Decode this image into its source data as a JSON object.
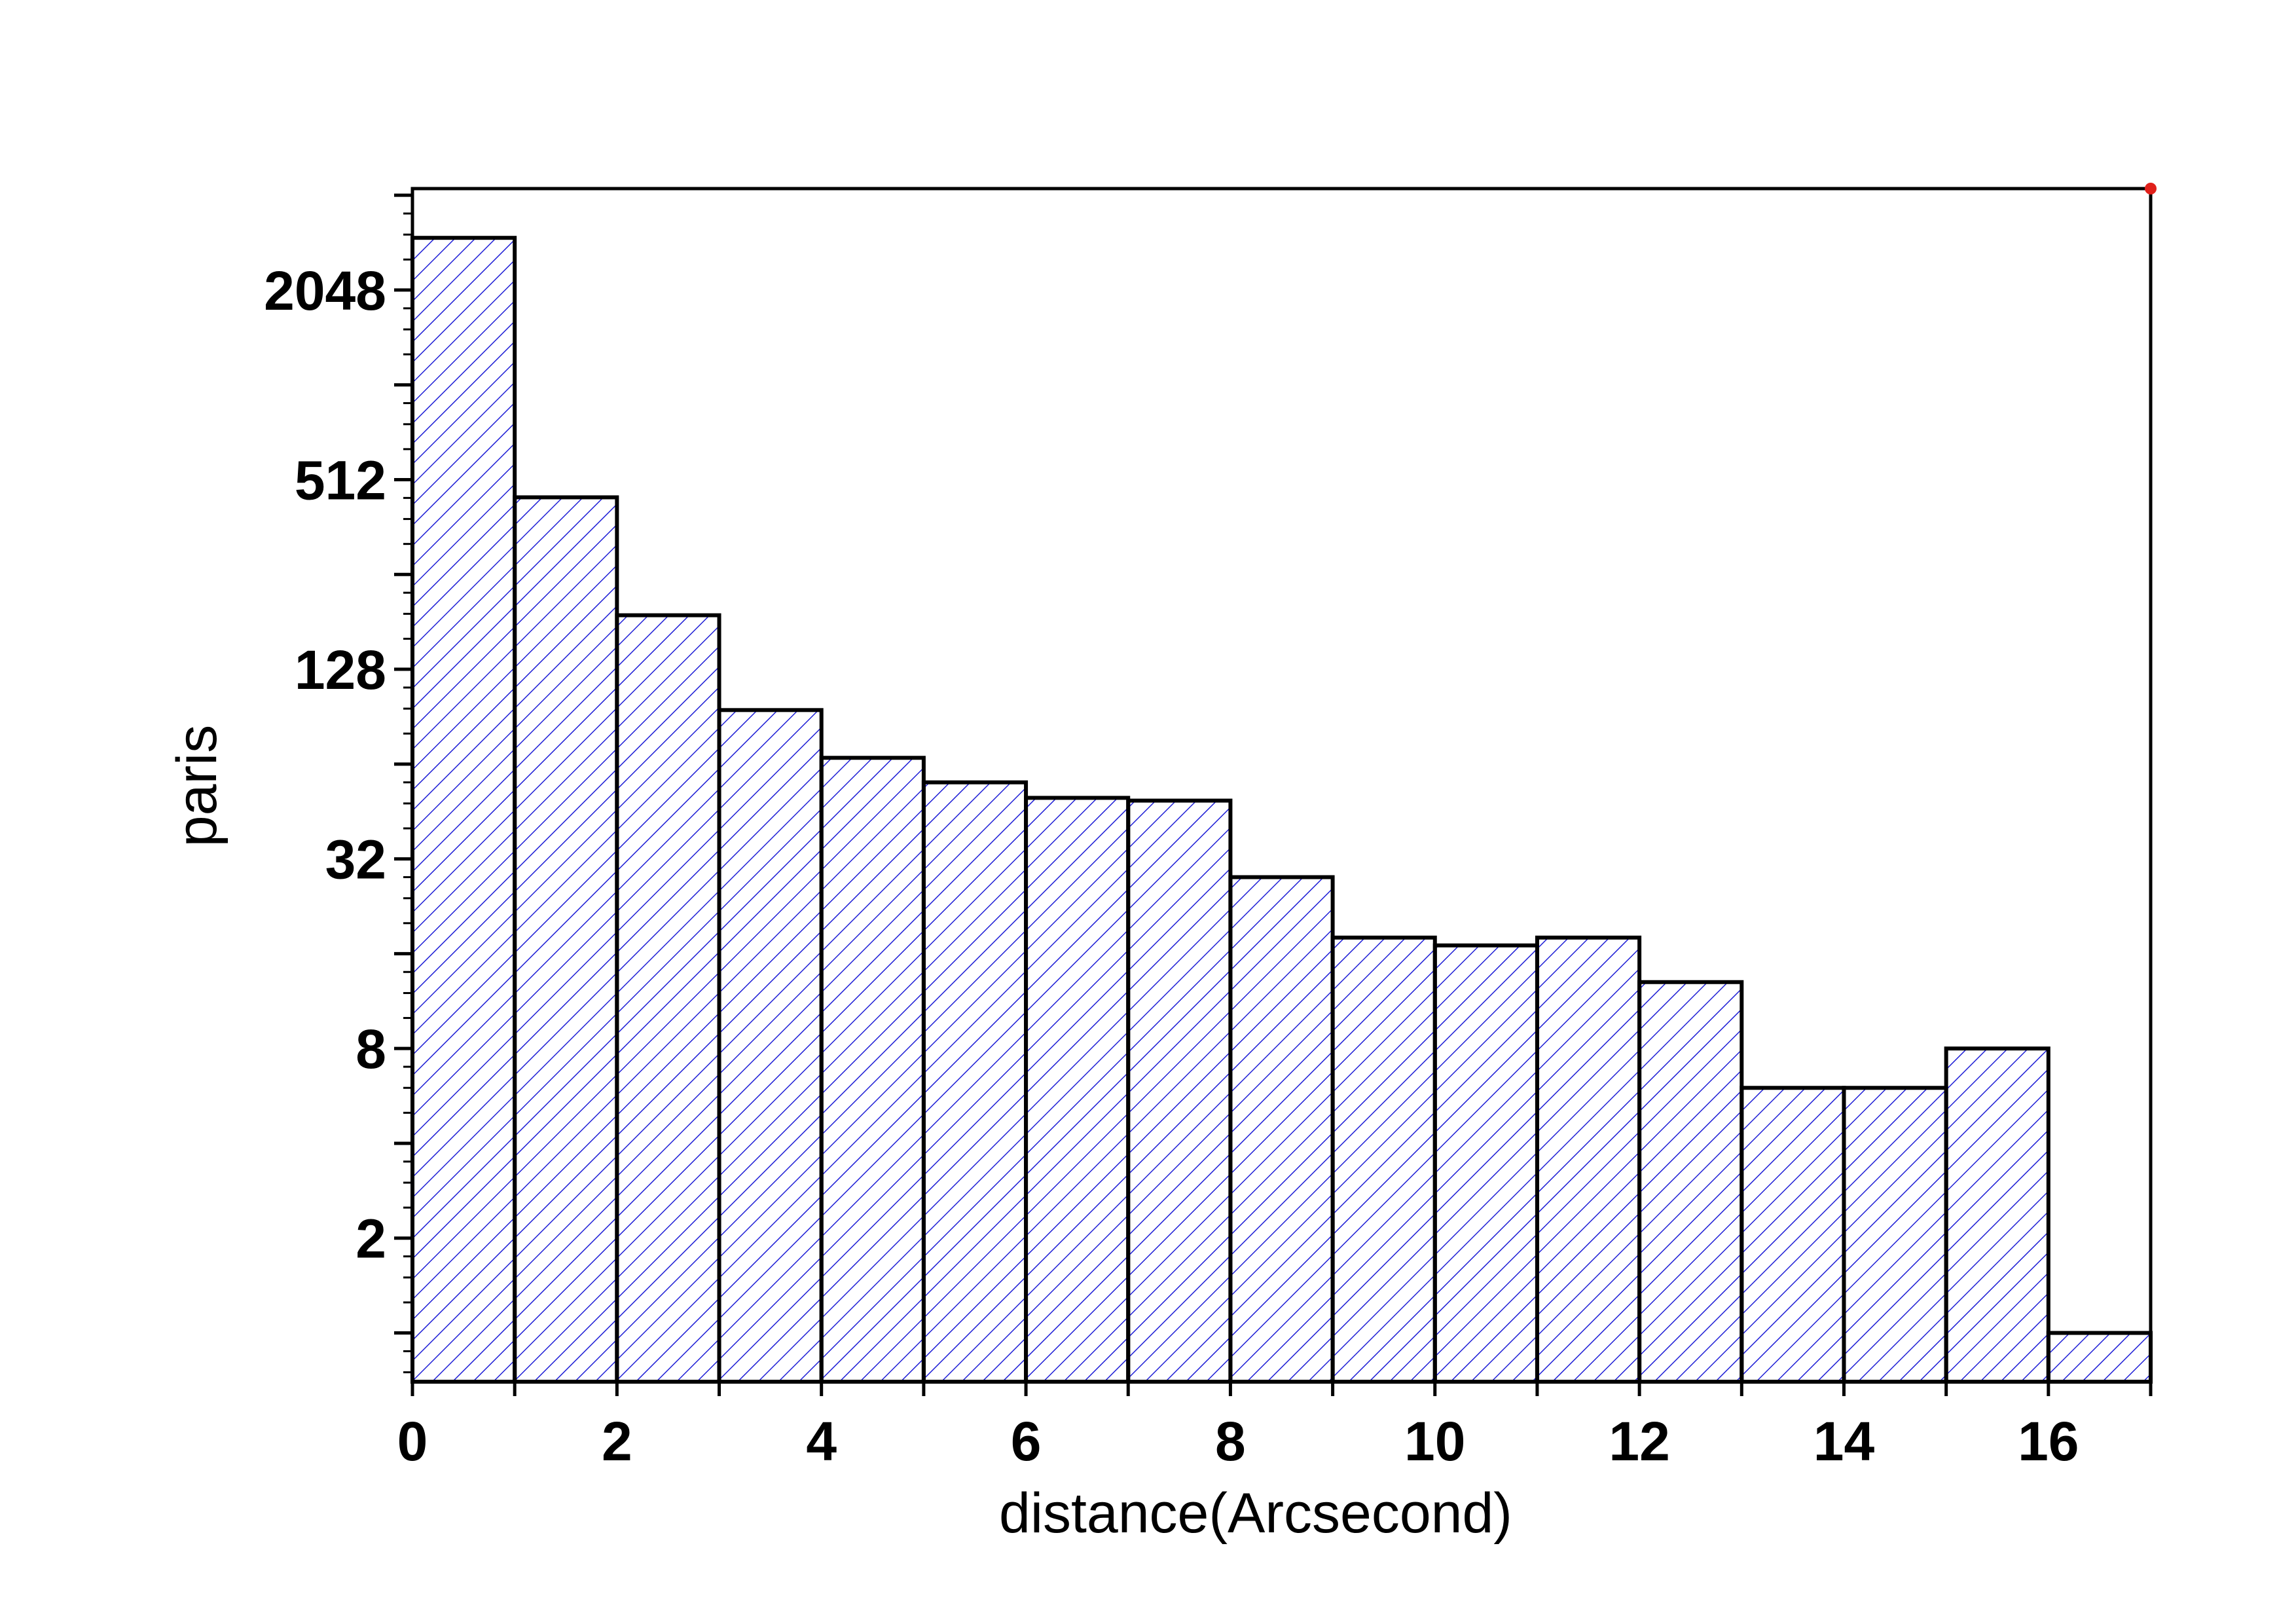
{
  "chart_data": {
    "type": "bar",
    "subtype": "histogram",
    "xlabel": "distance(Arcsecond)",
    "ylabel": "paris",
    "y_scale": "log2",
    "xlim": [
      0,
      17
    ],
    "ylim": [
      0.7,
      4300
    ],
    "x_ticks": [
      0,
      2,
      4,
      6,
      8,
      10,
      12,
      14,
      16
    ],
    "y_ticks": [
      2,
      8,
      32,
      128,
      512,
      2048
    ],
    "bin_width": 1,
    "bins": [
      {
        "x0": 0,
        "x1": 1,
        "value": 3000
      },
      {
        "x0": 1,
        "x1": 2,
        "value": 450
      },
      {
        "x0": 2,
        "x1": 3,
        "value": 190
      },
      {
        "x0": 3,
        "x1": 4,
        "value": 95
      },
      {
        "x0": 4,
        "x1": 5,
        "value": 67
      },
      {
        "x0": 5,
        "x1": 6,
        "value": 56
      },
      {
        "x0": 6,
        "x1": 7,
        "value": 50
      },
      {
        "x0": 7,
        "x1": 8,
        "value": 49
      },
      {
        "x0": 8,
        "x1": 9,
        "value": 28
      },
      {
        "x0": 9,
        "x1": 10,
        "value": 18
      },
      {
        "x0": 10,
        "x1": 11,
        "value": 17
      },
      {
        "x0": 11,
        "x1": 12,
        "value": 18
      },
      {
        "x0": 12,
        "x1": 13,
        "value": 13
      },
      {
        "x0": 13,
        "x1": 14,
        "value": 6
      },
      {
        "x0": 14,
        "x1": 15,
        "value": 6
      },
      {
        "x0": 15,
        "x1": 16,
        "value": 8
      },
      {
        "x0": 16,
        "x1": 17,
        "value": 1
      }
    ],
    "grid": false,
    "legend": "none",
    "bar_fill": "hatched diagonal",
    "hatch_color": "#1f1fd6",
    "edge_color": "#000000",
    "marker_color": "#e0201a"
  }
}
